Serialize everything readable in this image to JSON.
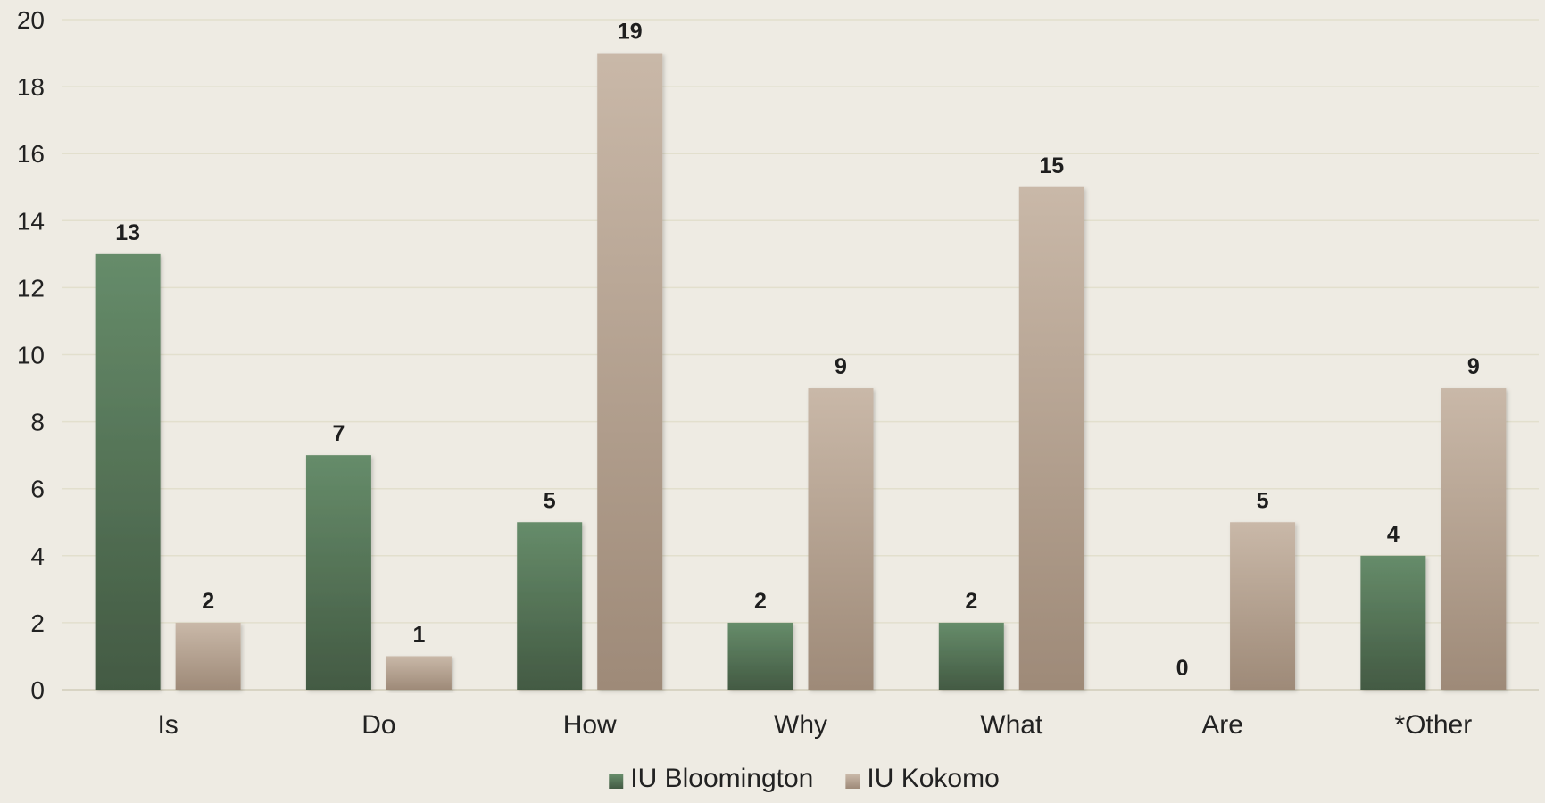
{
  "chart_data": {
    "type": "bar",
    "title": "",
    "xlabel": "",
    "ylabel": "",
    "ylim": [
      0,
      20
    ],
    "yticks": [
      0,
      2,
      4,
      6,
      8,
      10,
      12,
      14,
      16,
      18,
      20
    ],
    "grid": true,
    "legend_position": "bottom",
    "categories": [
      "Is",
      "Do",
      "How",
      "Why",
      "What",
      "Are",
      "*Other"
    ],
    "series": [
      {
        "name": "IU Bloomington",
        "values": [
          13,
          7,
          5,
          2,
          2,
          0,
          4
        ],
        "color_top": "#668c6a",
        "color_bottom": "#435a43"
      },
      {
        "name": "IU Kokomo",
        "values": [
          2,
          1,
          19,
          9,
          15,
          5,
          9
        ],
        "color_top": "#c9b8a8",
        "color_bottom": "#9e8a78"
      }
    ]
  }
}
